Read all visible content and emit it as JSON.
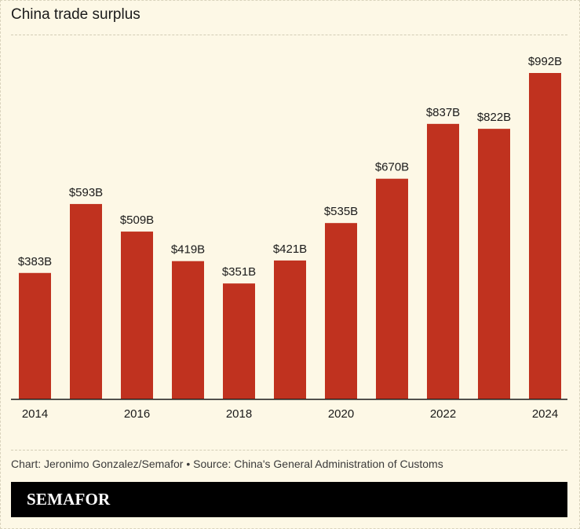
{
  "title": "China trade surplus",
  "chart_data": {
    "type": "bar",
    "title": "China trade surplus",
    "categories": [
      "2014",
      "2015",
      "2016",
      "2017",
      "2018",
      "2019",
      "2020",
      "2021",
      "2022",
      "2023",
      "2024"
    ],
    "values": [
      383,
      593,
      509,
      419,
      351,
      421,
      535,
      670,
      837,
      822,
      992
    ],
    "value_labels": [
      "$383B",
      "$593B",
      "$509B",
      "$419B",
      "$351B",
      "$421B",
      "$535B",
      "$670B",
      "$837B",
      "$822B",
      "$992B"
    ],
    "x_tick_labels": [
      "2014",
      "2016",
      "2018",
      "2020",
      "2022",
      "2024"
    ],
    "xlabel": "",
    "ylabel": "",
    "grid": false,
    "bar_color": "#c0321f"
  },
  "footer": {
    "credit": "Chart: Jeronimo Gonzalez/Semafor • Source: China's General Administration of Customs",
    "brand": "SEMAFOR"
  },
  "colors": {
    "background": "#fdf8e6",
    "bar": "#c0321f",
    "brand_bar": "#000000"
  }
}
